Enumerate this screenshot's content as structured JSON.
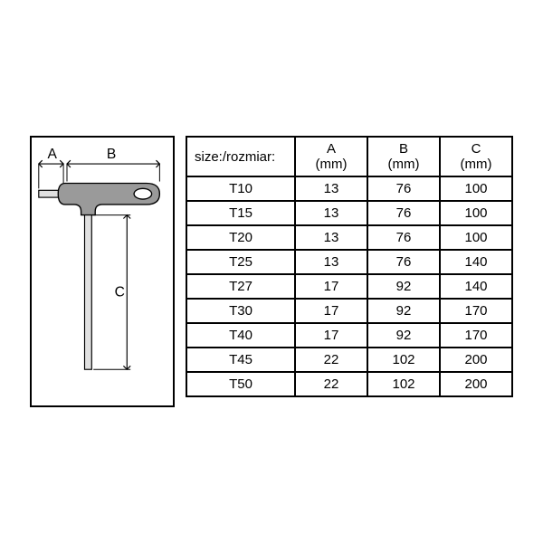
{
  "diagram": {
    "label_a": "A",
    "label_b": "B",
    "label_c": "C"
  },
  "table": {
    "headers": {
      "size": "size:/rozmiar:",
      "a": "A",
      "a_unit": "(mm)",
      "b": "B",
      "b_unit": "(mm)",
      "c": "C",
      "c_unit": "(mm)"
    },
    "rows": [
      {
        "size": "T10",
        "a": "13",
        "b": "76",
        "c": "100"
      },
      {
        "size": "T15",
        "a": "13",
        "b": "76",
        "c": "100"
      },
      {
        "size": "T20",
        "a": "13",
        "b": "76",
        "c": "100"
      },
      {
        "size": "T25",
        "a": "13",
        "b": "76",
        "c": "140"
      },
      {
        "size": "T27",
        "a": "17",
        "b": "92",
        "c": "140"
      },
      {
        "size": "T30",
        "a": "17",
        "b": "92",
        "c": "170"
      },
      {
        "size": "T40",
        "a": "17",
        "b": "92",
        "c": "170"
      },
      {
        "size": "T45",
        "a": "22",
        "b": "102",
        "c": "200"
      },
      {
        "size": "T50",
        "a": "22",
        "b": "102",
        "c": "200"
      }
    ]
  },
  "style": {
    "border_color": "#000000",
    "background_color": "#ffffff",
    "handle_fill": "#9a9a9a",
    "shaft_fill": "#e0e0e0",
    "font_size": 15
  }
}
